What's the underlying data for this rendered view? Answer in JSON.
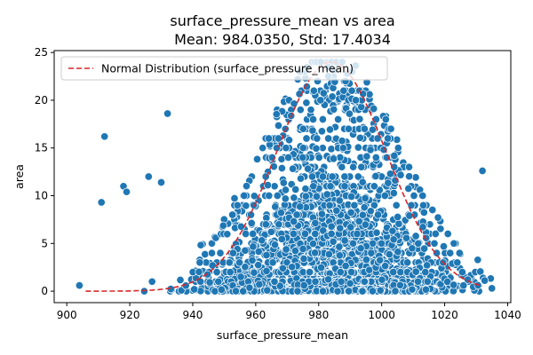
{
  "chart_data": {
    "type": "scatter",
    "title": "surface_pressure_mean vs area",
    "subtitle": "Mean: 984.0350, Std: 17.4034",
    "xlabel": "surface_pressure_mean",
    "ylabel": "area",
    "xlim": [
      896,
      1041
    ],
    "ylim": [
      -1.2,
      25.2
    ],
    "xticks": [
      900,
      920,
      940,
      960,
      980,
      1000,
      1020,
      1040
    ],
    "yticks": [
      0,
      5,
      10,
      15,
      20,
      25
    ],
    "grid": false,
    "legend_position": "top-left",
    "series": [
      {
        "name": "",
        "kind": "scatter",
        "color": "#1f77b4",
        "approx_point_count": 2200,
        "x_range": [
          904,
          1035
        ],
        "y_range": [
          0,
          24
        ],
        "notable_points": [
          {
            "x": 904,
            "y": 0.6
          },
          {
            "x": 911,
            "y": 9.3
          },
          {
            "x": 912,
            "y": 16.2
          },
          {
            "x": 918,
            "y": 11.0
          },
          {
            "x": 919,
            "y": 10.4
          },
          {
            "x": 926,
            "y": 12.0
          },
          {
            "x": 930,
            "y": 11.4
          },
          {
            "x": 932,
            "y": 18.6
          },
          {
            "x": 1032,
            "y": 12.6
          },
          {
            "x": 1035,
            "y": 0.3
          }
        ]
      },
      {
        "name": "Normal Distribution (surface_pressure_mean)",
        "kind": "line",
        "color": "#d62728",
        "linestyle": "dashed",
        "mean": 984.035,
        "std": 17.4034,
        "peak": 24,
        "x_range": [
          906,
          1032
        ]
      }
    ]
  }
}
